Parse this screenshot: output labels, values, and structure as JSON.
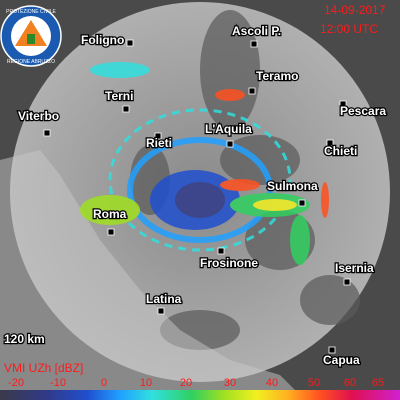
{
  "header": {
    "date": "14-09-2017",
    "time": "12:00 UTC"
  },
  "logo": {
    "top": "PROTEZIONE CIVILE",
    "bottom": "REGIONE ABRUZZO"
  },
  "cities": [
    "Foligno",
    "Ascoli P.",
    "Teramo",
    "Terni",
    "Viterbo",
    "Pescara",
    "L'Aquila",
    "Rieti",
    "Chieti",
    "Sulmona",
    "Roma",
    "Frosinone",
    "Isernia",
    "Latina",
    "Capua"
  ],
  "range": "120 km",
  "legend": {
    "title": "VMI UZh [dBZ]",
    "ticks": [
      -20,
      -10,
      0,
      10,
      20,
      30,
      40,
      50,
      60,
      65
    ]
  }
}
